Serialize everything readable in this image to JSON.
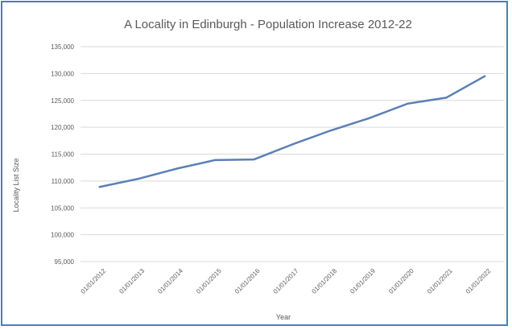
{
  "chart_data": {
    "type": "line",
    "title": "A Locality in Edinburgh - Population Increase 2012-22",
    "xlabel": "Year",
    "ylabel": "Locality List Size",
    "categories": [
      "01/01/2012",
      "01/01/2013",
      "01/01/2014",
      "01/01/2015",
      "01/01/2016",
      "01/01/2017",
      "01/01/2018",
      "01/01/2019",
      "01/01/2020",
      "01/01/2021",
      "01/01/2022"
    ],
    "y_ticks": [
      "95,000",
      "100,000",
      "105,000",
      "110,000",
      "115,000",
      "120,000",
      "125,000",
      "130,000",
      "135,000"
    ],
    "ylim": [
      95000,
      135000
    ],
    "grid": true,
    "series": [
      {
        "values": [
          108900,
          110400,
          112300,
          113900,
          114000,
          116800,
          119400,
          121700,
          124400,
          125500,
          129500
        ]
      }
    ],
    "colors": {
      "line": "#5b7fb5",
      "grid": "#d9d9d9",
      "frame": "#4a7ebb"
    }
  }
}
